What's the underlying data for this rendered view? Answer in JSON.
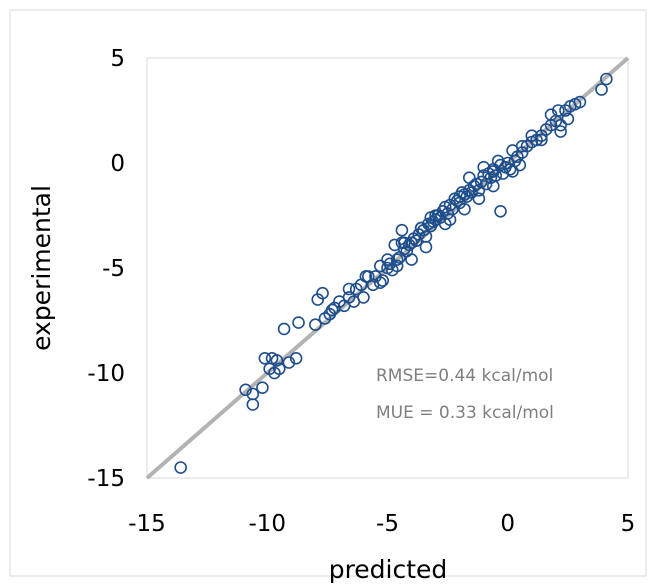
{
  "chart_data": {
    "type": "scatter",
    "title": "",
    "xlabel": "predicted",
    "ylabel": "experimental",
    "xlim": [
      -15,
      5
    ],
    "ylim": [
      -15,
      5
    ],
    "x_ticks": [
      "-15",
      "-10",
      "-5",
      "0",
      "5"
    ],
    "y_ticks": [
      "5",
      "0",
      "-5",
      "-10",
      "-15"
    ],
    "x_tick_values": [
      -15,
      -10,
      -5,
      0,
      5
    ],
    "y_tick_values": [
      5,
      0,
      -5,
      -10,
      -15
    ],
    "grid": false,
    "legend": "none",
    "reference_line": {
      "from": [
        -15,
        -15
      ],
      "to": [
        5,
        5
      ],
      "color": "#b3b3b3"
    },
    "marker_color": "#1f4e8c",
    "annotations": [
      "RMSE=0.44 kcal/mol",
      "MUE = 0.33 kcal/mol"
    ],
    "series": [
      {
        "marker": "open-circle",
        "x": [
          -13.6,
          -10.9,
          -10.6,
          -10.6,
          -10.2,
          -10.1,
          -9.9,
          -9.8,
          -9.7,
          -9.6,
          -9.5,
          -9.3,
          -9.1,
          -8.8,
          -8.7,
          -8.0,
          -7.9,
          -7.7,
          -7.6,
          -7.4,
          -7.2,
          -7.0,
          -6.8,
          -6.6,
          -6.4,
          -6.3,
          -6.1,
          -6.0,
          -5.9,
          -5.6,
          -5.5,
          -5.3,
          -5.2,
          -5.0,
          -4.9,
          -4.8,
          -4.7,
          -4.6,
          -4.5,
          -4.4,
          -4.3,
          -4.2,
          -4.1,
          -4.0,
          -3.9,
          -3.8,
          -3.7,
          -3.6,
          -3.5,
          -3.4,
          -3.3,
          -3.2,
          -3.1,
          -3.0,
          -2.9,
          -2.8,
          -2.7,
          -2.6,
          -2.5,
          -2.4,
          -2.3,
          -2.2,
          -2.1,
          -2.0,
          -1.9,
          -1.8,
          -1.7,
          -1.6,
          -1.5,
          -1.4,
          -1.3,
          -1.2,
          -1.1,
          -1.0,
          -0.9,
          -0.8,
          -0.7,
          -0.6,
          -0.5,
          -0.4,
          -0.3,
          -0.2,
          -0.1,
          0.0,
          0.1,
          0.2,
          0.3,
          0.4,
          0.6,
          0.8,
          1.0,
          1.2,
          1.4,
          1.6,
          1.8,
          2.0,
          2.2,
          2.4,
          2.6,
          2.8,
          3.0,
          3.9,
          4.1,
          -4.4,
          -3.2,
          -1.2,
          -0.6,
          0.6,
          2.2,
          -5.8,
          -4.0,
          -2.6,
          -0.6,
          -3.4,
          -1.6,
          0.5,
          1.8,
          -6.6,
          -5.0,
          -2.0,
          -3.0,
          -4.6,
          -1.8,
          0.2,
          1.4,
          2.5,
          -7.3,
          -5.3,
          -4.3,
          -2.4,
          -3.6,
          -1.0,
          1.0,
          2.1,
          -0.3
        ],
        "y": [
          -14.5,
          -10.8,
          -11.5,
          -11.0,
          -10.7,
          -9.3,
          -9.8,
          -9.3,
          -10.0,
          -9.4,
          -9.8,
          -7.9,
          -9.5,
          -9.3,
          -7.6,
          -7.7,
          -6.5,
          -6.2,
          -7.4,
          -7.2,
          -6.9,
          -6.6,
          -6.8,
          -6.4,
          -6.6,
          -6.0,
          -5.8,
          -6.4,
          -5.4,
          -5.8,
          -5.4,
          -4.9,
          -5.6,
          -5.0,
          -4.8,
          -5.1,
          -3.9,
          -4.6,
          -4.5,
          -3.2,
          -4.1,
          -4.2,
          -3.9,
          -3.8,
          -3.6,
          -3.7,
          -3.4,
          -3.1,
          -3.2,
          -3.5,
          -2.9,
          -3.0,
          -2.8,
          -2.7,
          -2.5,
          -2.6,
          -2.3,
          -2.1,
          -2.4,
          -2.0,
          -2.2,
          -1.7,
          -1.8,
          -1.6,
          -1.4,
          -1.5,
          -1.6,
          -0.7,
          -1.4,
          -1.1,
          -1.0,
          -1.3,
          -0.9,
          -0.6,
          -1.0,
          -0.5,
          -0.7,
          -0.4,
          -0.6,
          0.1,
          -0.1,
          -0.5,
          -0.2,
          0.0,
          -0.3,
          0.6,
          0.1,
          0.3,
          0.5,
          0.8,
          1.0,
          1.1,
          1.3,
          1.6,
          1.8,
          2.0,
          1.5,
          2.5,
          2.7,
          2.8,
          2.9,
          3.5,
          4.0,
          -3.8,
          -2.6,
          -1.7,
          -0.3,
          0.8,
          1.8,
          -5.4,
          -4.6,
          -2.9,
          -1.1,
          -4.0,
          -1.3,
          -0.1,
          2.3,
          -6.0,
          -4.6,
          -1.9,
          -2.5,
          -4.9,
          -2.2,
          -0.4,
          1.1,
          2.1,
          -7.0,
          -5.7,
          -3.8,
          -2.7,
          -3.1,
          -0.2,
          1.3,
          2.5,
          -2.3
        ]
      }
    ]
  }
}
